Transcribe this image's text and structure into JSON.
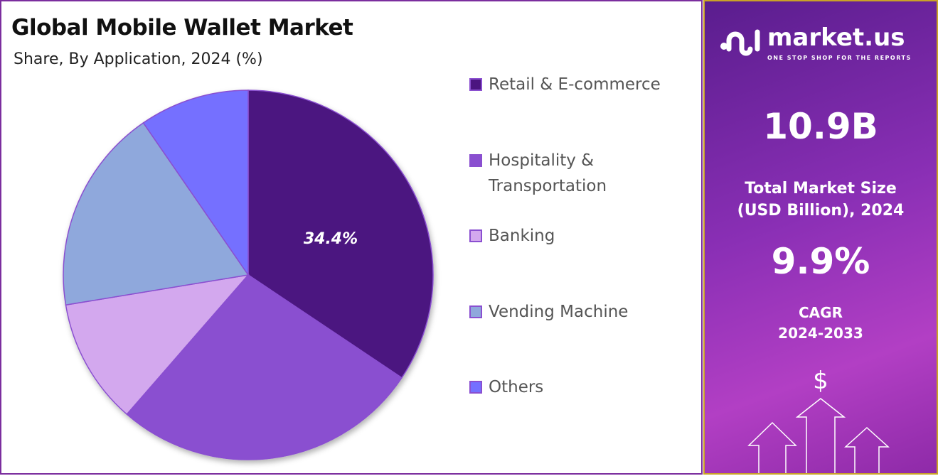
{
  "header": {
    "title": "Global Mobile Wallet Market",
    "subtitle": "Share, By Application, 2024 (%)"
  },
  "chart_data": {
    "type": "pie",
    "title": "Global Mobile Wallet Market",
    "subtitle": "Share, By Application, 2024 (%)",
    "categories": [
      "Retail & E-commerce",
      "Hospitality & Transportation",
      "Banking",
      "Vending Machine",
      "Others"
    ],
    "values": [
      34.4,
      27.0,
      11.0,
      18.0,
      9.6
    ],
    "colors": [
      "#4B1580",
      "#8A4FD0",
      "#D3A8EE",
      "#8FA8DC",
      "#7470FF"
    ],
    "data_labels": [
      "34.4%",
      "",
      "",
      "",
      ""
    ],
    "legend_position": "right"
  },
  "legend": {
    "items": [
      {
        "line1": "Retail & E-commerce",
        "line2": ""
      },
      {
        "line1": "Hospitality &",
        "line2": "Transportation"
      },
      {
        "line1": "Banking",
        "line2": ""
      },
      {
        "line1": "Vending Machine",
        "line2": ""
      },
      {
        "line1": "Others",
        "line2": ""
      }
    ]
  },
  "panel": {
    "logo_name": "market.us",
    "logo_tagline": "ONE STOP SHOP FOR THE REPORTS",
    "market_size": "10.9B",
    "market_size_label_1": "Total Market Size",
    "market_size_label_2": "(USD Billion), 2024",
    "cagr": "9.9%",
    "cagr_label_1": "CAGR",
    "cagr_label_2": "2024-2033",
    "currency_symbol": "$"
  }
}
